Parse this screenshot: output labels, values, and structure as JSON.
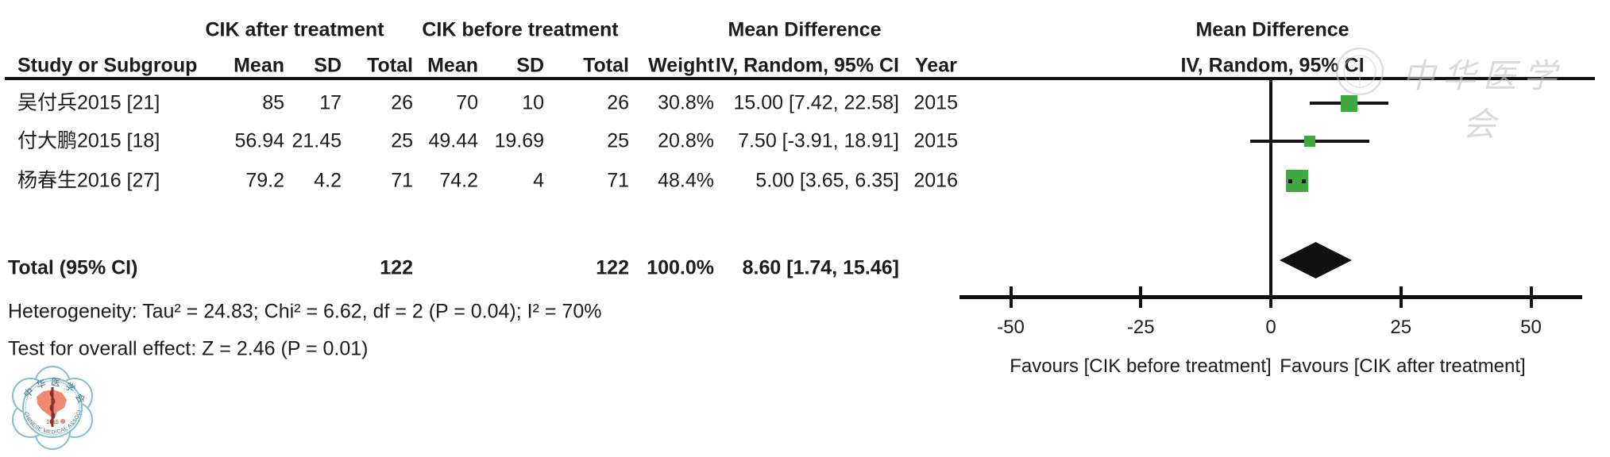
{
  "table": {
    "group_headers": {
      "experimental": "CIK after treatment",
      "control": "CIK before treatment",
      "md_table": "Mean Difference",
      "md_plot": "Mean Difference"
    },
    "column_headers": {
      "study": "Study or Subgroup",
      "mean1": "Mean",
      "sd1": "SD",
      "total1": "Total",
      "mean2": "Mean",
      "sd2": "SD",
      "total2": "Total",
      "weight": "Weight",
      "ci": "IV, Random, 95% CI",
      "year": "Year",
      "ci_plot": "IV, Random, 95% CI"
    },
    "rows": [
      {
        "study": "吴付兵2015 [21]",
        "mean1": "85",
        "sd1": "17",
        "total1": "26",
        "mean2": "70",
        "sd2": "10",
        "total2": "26",
        "weight": "30.8%",
        "ci": "15.00 [7.42, 22.58]",
        "year": "2015"
      },
      {
        "study": "付大鹏2015 [18]",
        "mean1": "56.94",
        "sd1": "21.45",
        "total1": "25",
        "mean2": "49.44",
        "sd2": "19.69",
        "total2": "25",
        "weight": "20.8%",
        "ci": "7.50 [-3.91, 18.91]",
        "year": "2015"
      },
      {
        "study": "杨春生2016 [27]",
        "mean1": "79.2",
        "sd1": "4.2",
        "total1": "71",
        "mean2": "74.2",
        "sd2": "4",
        "total2": "71",
        "weight": "48.4%",
        "ci": "5.00 [3.65, 6.35]",
        "year": "2016"
      }
    ],
    "total_row": {
      "label": "Total (95% CI)",
      "total1": "122",
      "total2": "122",
      "weight": "100.0%",
      "ci": "8.60 [1.74, 15.46]"
    },
    "footer": {
      "heterogeneity": "Heterogeneity: Tau² = 24.83; Chi² = 6.62, df = 2 (P = 0.04); I² = 70%",
      "overall_effect": "Test for overall effect: Z = 2.46 (P = 0.01)"
    }
  },
  "chart_data": {
    "type": "forest",
    "effect_measure": "Mean Difference",
    "model": "IV, Random, 95% CI",
    "studies": [
      {
        "name": "吴付兵2015 [21]",
        "md": 15.0,
        "ci_low": 7.42,
        "ci_high": 22.58,
        "weight_pct": 30.8,
        "year": "2015"
      },
      {
        "name": "付大鹏2015 [18]",
        "md": 7.5,
        "ci_low": -3.91,
        "ci_high": 18.91,
        "weight_pct": 20.8,
        "year": "2015"
      },
      {
        "name": "杨春生2016 [27]",
        "md": 5.0,
        "ci_low": 3.65,
        "ci_high": 6.35,
        "weight_pct": 48.4,
        "year": "2016"
      }
    ],
    "total": {
      "md": 8.6,
      "ci_low": 1.74,
      "ci_high": 15.46,
      "weight_pct": 100.0
    },
    "axis_ticks": [
      -50,
      -25,
      0,
      25,
      50
    ],
    "xlim": [
      -60,
      60
    ],
    "favours_left": "Favours [CIK before treatment]",
    "favours_right": "Favours [CIK after treatment]",
    "marker_color": "#3fa83f",
    "summary_color": "#111111"
  },
  "watermark": {
    "text": "中华医学会"
  },
  "logo": {
    "name": "Chinese Medical Association seal",
    "text_cjk": "中华医学会",
    "text_en": "CHINESE MEDICAL ASSOCIATION",
    "year": "1915"
  }
}
